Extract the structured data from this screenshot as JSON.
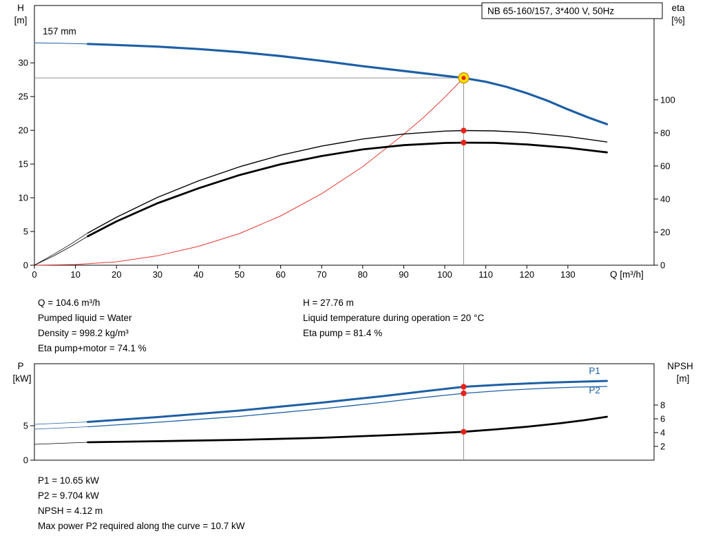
{
  "info": {
    "top_left": [
      "Q = 104.6 m³/h",
      "Pumped liquid = Water",
      "Density = 998.2 kg/m³",
      "Eta pump+motor = 74.1 %"
    ],
    "top_right": [
      "H = 27.76 m",
      "Liquid temperature during operation = 20 °C",
      "Eta pump = 81.4 %"
    ],
    "bottom": [
      "P1 = 10.65 kW",
      "P2 = 9.704 kW",
      "NPSH = 4.12 m",
      "Max power P2 required along the curve = 10.7 kW"
    ]
  },
  "colors": {
    "blue": "#1d5fa5",
    "black": "#000000",
    "red": "#e2382d",
    "op_red": "#e8231d",
    "op_yellow": "#ffe100",
    "op_stroke": "#cc8800",
    "guide_gray": "#909090"
  },
  "chart_data": [
    {
      "type": "line",
      "title": "NB 65-160/157, 3*400 V, 50Hz",
      "annotation_label": "157 mm",
      "x_label": "Q [m³/h]",
      "y_left_label": [
        "H",
        "[m]"
      ],
      "y_right_label": [
        "eta",
        "[%]"
      ],
      "x_range": [
        0,
        151
      ],
      "x_ticks": [
        0,
        10,
        20,
        30,
        40,
        50,
        60,
        70,
        80,
        90,
        100,
        110,
        120,
        130
      ],
      "y_left_range": [
        0,
        38.5
      ],
      "y_left_ticks": [
        0,
        5,
        10,
        15,
        20,
        25,
        30
      ],
      "y_right_range": [
        0,
        157
      ],
      "y_right_ticks": [
        0,
        20,
        40,
        60,
        80,
        100
      ],
      "grid": false,
      "operating_point": {
        "Q": 104.6,
        "H": 27.76,
        "eta_pump": 81.4,
        "eta_pump_motor": 74.1
      },
      "series": [
        {
          "name": "system-curve",
          "axis": "left",
          "color": "red",
          "width": 1,
          "points": [
            [
              0,
              0
            ],
            [
              10,
              0.1
            ],
            [
              20,
              0.5
            ],
            [
              30,
              1.4
            ],
            [
              40,
              2.8
            ],
            [
              50,
              4.7
            ],
            [
              60,
              7.3
            ],
            [
              70,
              10.6
            ],
            [
              80,
              14.6
            ],
            [
              90,
              19.4
            ],
            [
              95,
              22.0
            ],
            [
              100,
              24.9
            ],
            [
              104.6,
              27.76
            ]
          ]
        },
        {
          "name": "eta-pump-lead",
          "axis": "right",
          "color": "black",
          "width": 0.8,
          "points": [
            [
              0,
              0
            ],
            [
              5,
              7
            ],
            [
              9,
              13
            ],
            [
              13,
              19.5
            ]
          ]
        },
        {
          "name": "eta-pump",
          "axis": "right",
          "color": "black",
          "width": 1.4,
          "points": [
            [
              13,
              19.5
            ],
            [
              20,
              29
            ],
            [
              30,
              41
            ],
            [
              40,
              51
            ],
            [
              50,
              59.5
            ],
            [
              60,
              66.5
            ],
            [
              70,
              72
            ],
            [
              80,
              76.3
            ],
            [
              90,
              79.3
            ],
            [
              100,
              81.1
            ],
            [
              104.6,
              81.4
            ],
            [
              112,
              81.2
            ],
            [
              120,
              80.2
            ],
            [
              130,
              77.8
            ],
            [
              139.5,
              74.5
            ]
          ]
        },
        {
          "name": "eta-pump-motor-lead",
          "axis": "right",
          "color": "black",
          "width": 0.8,
          "points": [
            [
              0,
              0
            ],
            [
              5,
              6
            ],
            [
              9,
              11.5
            ],
            [
              13,
              17.5
            ]
          ]
        },
        {
          "name": "eta-pump-motor",
          "axis": "right",
          "color": "black",
          "width": 2.8,
          "points": [
            [
              13,
              17.5
            ],
            [
              20,
              26.5
            ],
            [
              30,
              37.5
            ],
            [
              40,
              46.5
            ],
            [
              50,
              54.5
            ],
            [
              60,
              61
            ],
            [
              70,
              66
            ],
            [
              80,
              70
            ],
            [
              90,
              72.6
            ],
            [
              100,
              73.9
            ],
            [
              104.6,
              74.1
            ],
            [
              112,
              74
            ],
            [
              120,
              73
            ],
            [
              130,
              71
            ],
            [
              139.5,
              68.2
            ]
          ]
        },
        {
          "name": "head-lead",
          "axis": "left",
          "color": "blue",
          "width": 1,
          "points": [
            [
              0,
              32.95
            ],
            [
              6,
              32.9
            ],
            [
              13,
              32.8
            ]
          ]
        },
        {
          "name": "head-157mm",
          "axis": "left",
          "color": "blue",
          "width": 3.2,
          "points": [
            [
              13,
              32.8
            ],
            [
              20,
              32.65
            ],
            [
              30,
              32.4
            ],
            [
              40,
              32.05
            ],
            [
              50,
              31.6
            ],
            [
              60,
              31.0
            ],
            [
              70,
              30.3
            ],
            [
              80,
              29.5
            ],
            [
              90,
              28.8
            ],
            [
              97,
              28.3
            ],
            [
              104.6,
              27.76
            ],
            [
              110,
              27.2
            ],
            [
              115,
              26.45
            ],
            [
              120,
              25.5
            ],
            [
              125,
              24.4
            ],
            [
              130,
              23.1
            ],
            [
              135,
              21.9
            ],
            [
              139.5,
              20.9
            ]
          ]
        }
      ],
      "guides": [
        {
          "type": "h",
          "v": 27.76,
          "q1": 0,
          "q2": 104.6
        },
        {
          "type": "v",
          "q": 104.6,
          "v1": 27.76,
          "v2": 0
        }
      ],
      "markers": [
        {
          "q": 104.6,
          "v": 81.4,
          "axis": "right",
          "style": "dot"
        },
        {
          "q": 104.6,
          "v": 74.1,
          "axis": "right",
          "style": "dot"
        },
        {
          "q": 104.6,
          "v": 27.76,
          "axis": "left",
          "style": "duty"
        }
      ]
    },
    {
      "type": "line",
      "title": "",
      "x_label": "",
      "y_left_label": [
        "P",
        "[kW]"
      ],
      "y_right_label": [
        "NPSH",
        "[m]"
      ],
      "x_range": [
        0,
        151
      ],
      "x_ticks": [],
      "y_left_range": [
        0,
        14
      ],
      "y_left_ticks": [
        0,
        5
      ],
      "y_right_range": [
        0,
        14
      ],
      "y_right_ticks": [
        2,
        4,
        6,
        8
      ],
      "grid": false,
      "operating_point": {
        "Q": 104.6,
        "P1": 10.65,
        "P2": 9.704,
        "NPSH": 4.12
      },
      "series": [
        {
          "name": "npsh-lead",
          "axis": "right",
          "color": "black",
          "width": 0.8,
          "points": [
            [
              0,
              2.3
            ],
            [
              13,
              2.6
            ]
          ]
        },
        {
          "name": "npsh",
          "axis": "right",
          "color": "black",
          "width": 2.8,
          "points": [
            [
              13,
              2.6
            ],
            [
              30,
              2.75
            ],
            [
              50,
              2.95
            ],
            [
              70,
              3.25
            ],
            [
              85,
              3.6
            ],
            [
              95,
              3.85
            ],
            [
              104.6,
              4.12
            ],
            [
              112,
              4.45
            ],
            [
              120,
              4.85
            ],
            [
              128,
              5.35
            ],
            [
              134,
              5.8
            ],
            [
              139.5,
              6.3
            ]
          ]
        },
        {
          "name": "p2-lead",
          "axis": "left",
          "color": "blue",
          "width": 0.8,
          "points": [
            [
              0,
              4.5
            ],
            [
              13,
              4.85
            ]
          ]
        },
        {
          "name": "p2",
          "axis": "left",
          "color": "blue",
          "width": 1.3,
          "points": [
            [
              13,
              4.85
            ],
            [
              30,
              5.5
            ],
            [
              50,
              6.35
            ],
            [
              70,
              7.45
            ],
            [
              85,
              8.4
            ],
            [
              95,
              9.1
            ],
            [
              104.6,
              9.704
            ],
            [
              115,
              10.15
            ],
            [
              125,
              10.45
            ],
            [
              132,
              10.6
            ],
            [
              139.5,
              10.7
            ]
          ]
        },
        {
          "name": "p1-lead",
          "axis": "left",
          "color": "blue",
          "width": 0.8,
          "points": [
            [
              0,
              5.2
            ],
            [
              13,
              5.55
            ]
          ]
        },
        {
          "name": "p1",
          "axis": "left",
          "color": "blue",
          "width": 3,
          "points": [
            [
              13,
              5.55
            ],
            [
              30,
              6.25
            ],
            [
              50,
              7.2
            ],
            [
              70,
              8.35
            ],
            [
              85,
              9.3
            ],
            [
              95,
              10.0
            ],
            [
              104.6,
              10.65
            ],
            [
              115,
              11.0
            ],
            [
              125,
              11.25
            ],
            [
              132,
              11.38
            ],
            [
              139.5,
              11.5
            ]
          ]
        }
      ],
      "inline_labels": [
        {
          "text": "P1",
          "q": 136.5,
          "v": 12.5,
          "axis": "left",
          "color": "blue"
        },
        {
          "text": "P2",
          "q": 136.5,
          "v": 9.7,
          "axis": "left",
          "color": "blue"
        }
      ],
      "guides": [
        {
          "type": "v",
          "q": 104.6
        }
      ],
      "markers": [
        {
          "q": 104.6,
          "v": 10.65,
          "axis": "left",
          "style": "dot"
        },
        {
          "q": 104.6,
          "v": 9.704,
          "axis": "left",
          "style": "dot"
        },
        {
          "q": 104.6,
          "v": 4.12,
          "axis": "right",
          "style": "dot"
        }
      ]
    }
  ]
}
